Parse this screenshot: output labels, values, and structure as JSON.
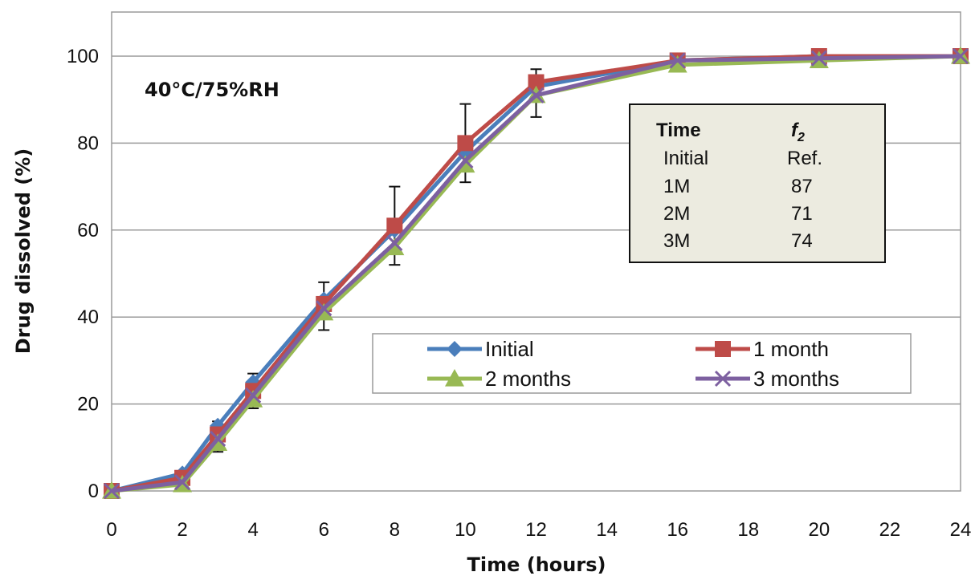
{
  "chart_data": {
    "type": "line",
    "title": "",
    "xlabel": "Time (hours)",
    "ylabel": "Drug dissolved (%)",
    "xlim": [
      0,
      24
    ],
    "ylim": [
      0,
      100
    ],
    "xticks": [
      0,
      2,
      4,
      6,
      8,
      10,
      12,
      14,
      16,
      18,
      20,
      22,
      24
    ],
    "yticks": [
      0,
      20,
      40,
      60,
      80,
      100
    ],
    "grid": "horizontal",
    "legend_position": "lower-right",
    "annotation": "40°C/75%RH",
    "x": [
      0,
      2,
      3,
      4,
      6,
      8,
      10,
      12,
      16,
      20,
      24
    ],
    "series": [
      {
        "name": "Initial",
        "color": "#4a7ebb",
        "marker": "diamond",
        "values": [
          0,
          4,
          15,
          25,
          44,
          60,
          78,
          93,
          99,
          100,
          100
        ]
      },
      {
        "name": "1 month",
        "color": "#be4b48",
        "marker": "square",
        "values": [
          0,
          3,
          13,
          23,
          43,
          61,
          80,
          94,
          99,
          100,
          100
        ]
      },
      {
        "name": "2 months",
        "color": "#98b954",
        "marker": "triangle",
        "values": [
          0,
          1.5,
          11,
          21,
          41,
          56,
          75,
          91,
          98,
          99,
          100
        ]
      },
      {
        "name": "3 months",
        "color": "#7d60a0",
        "marker": "x",
        "values": [
          0,
          2,
          12,
          22,
          42,
          57,
          76,
          91,
          99,
          99.5,
          100
        ]
      }
    ],
    "error_bars": [
      {
        "x": 3,
        "lo": 9,
        "hi": 16
      },
      {
        "x": 4,
        "lo": 19,
        "hi": 27
      },
      {
        "x": 6,
        "lo": 37,
        "hi": 48
      },
      {
        "x": 8,
        "lo": 52,
        "hi": 70
      },
      {
        "x": 10,
        "lo": 71,
        "hi": 89
      },
      {
        "x": 12,
        "lo": 86,
        "hi": 97
      }
    ],
    "f2_table": {
      "headers": [
        "Time",
        "f",
        "2"
      ],
      "rows": [
        [
          "Initial",
          "Ref."
        ],
        [
          "1M",
          "87"
        ],
        [
          "2M",
          "71"
        ],
        [
          "3M",
          "74"
        ]
      ]
    }
  }
}
